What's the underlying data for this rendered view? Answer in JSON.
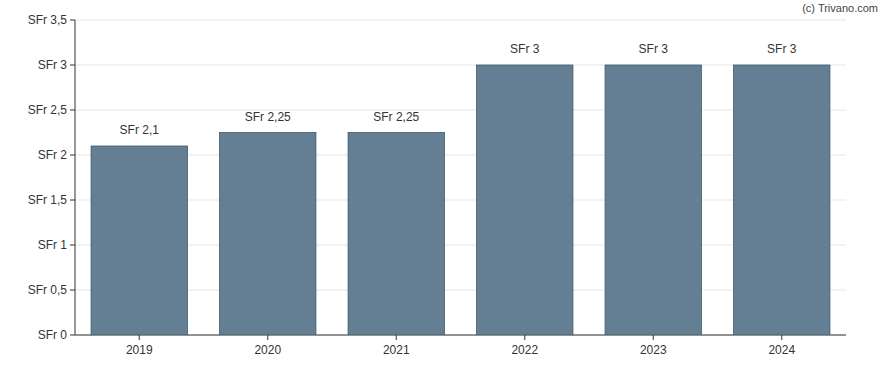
{
  "chart_data": {
    "type": "bar",
    "categories": [
      "2019",
      "2020",
      "2021",
      "2022",
      "2023",
      "2024"
    ],
    "values": [
      2.1,
      2.25,
      2.25,
      3,
      3,
      3
    ],
    "value_labels": [
      "SFr 2,1",
      "SFr 2,25",
      "SFr 2,25",
      "SFr 3",
      "SFr 3",
      "SFr 3"
    ],
    "color": "#647f93",
    "ylim": [
      0,
      3.5
    ],
    "yticks": [
      {
        "value": 0,
        "label": "SFr 0"
      },
      {
        "value": 0.5,
        "label": "SFr 0,5"
      },
      {
        "value": 1,
        "label": "SFr 1"
      },
      {
        "value": 1.5,
        "label": "SFr 1,5"
      },
      {
        "value": 2,
        "label": "SFr 2"
      },
      {
        "value": 2.5,
        "label": "SFr 2,5"
      },
      {
        "value": 3,
        "label": "SFr 3"
      },
      {
        "value": 3.5,
        "label": "SFr 3,5"
      }
    ],
    "grid": true,
    "data_labels": true,
    "annotations": [
      "(c) Trivano.com"
    ]
  }
}
